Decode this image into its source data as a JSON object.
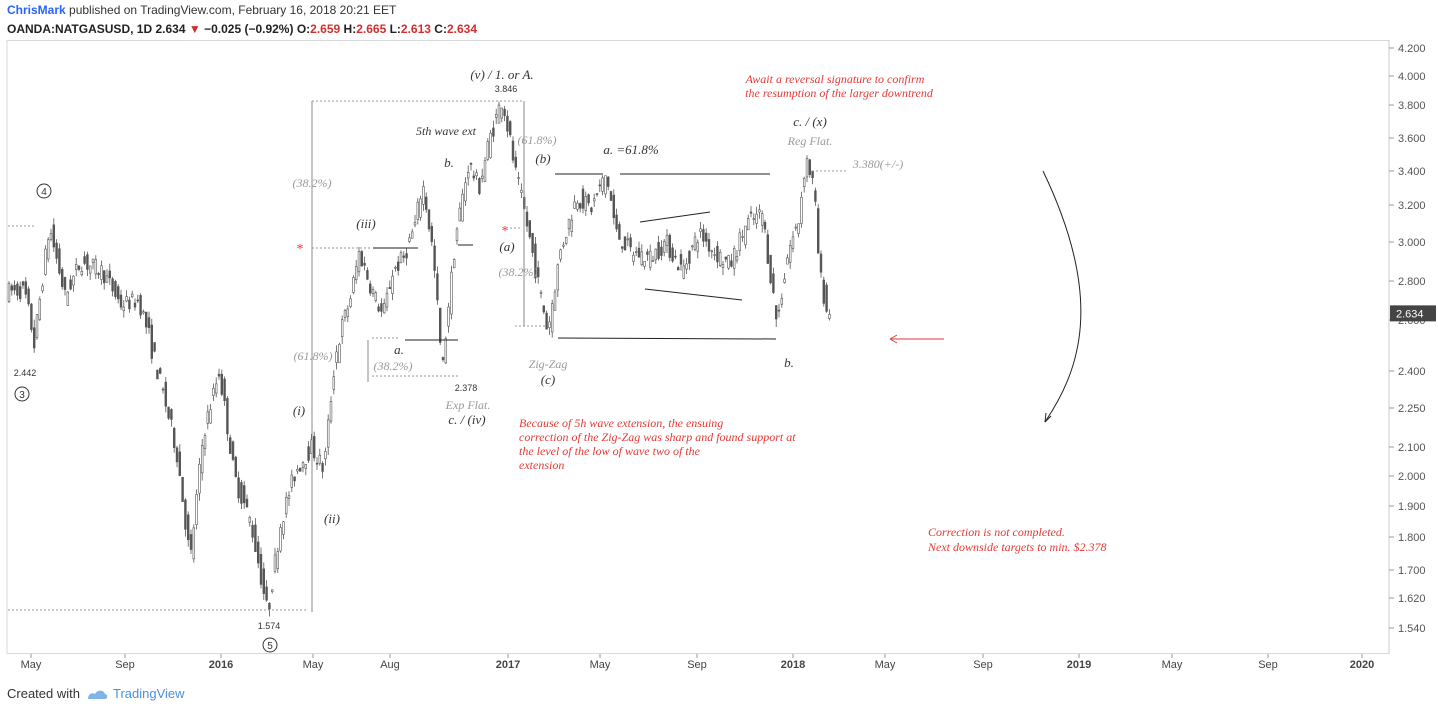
{
  "header": {
    "author": "ChrisMark",
    "published": "published on TradingView.com, February 16, 2018 20:21 EET",
    "symbol": "OANDA:NATGASUSD, 1D",
    "price": "2.634",
    "change": "−0.025 (−0.92%)",
    "o_label": "O:",
    "o_value": "2.659",
    "h_label": "H:",
    "h_value": "2.665",
    "l_label": "L:",
    "l_value": "2.613",
    "c_label": "C:",
    "c_value": "2.634"
  },
  "footer": {
    "created_with": "Created with",
    "brand": "TradingView"
  },
  "colors": {
    "annotation_red": "#e53935",
    "gray_text": "#999999",
    "dark_text": "#333333",
    "candle": "#555555",
    "price_tag": "#444444"
  },
  "chart_data": {
    "type": "candlestick",
    "price_label": "2.634",
    "y_ticks": [
      "4.200",
      "4.000",
      "3.800",
      "3.600",
      "3.400",
      "3.200",
      "3.000",
      "2.800",
      "2.600",
      "2.400",
      "2.250",
      "2.100",
      "2.000",
      "1.900",
      "1.800",
      "1.700",
      "1.620",
      "1.540"
    ],
    "x_ticks": [
      "May",
      "Sep",
      "2016",
      "May",
      "Aug",
      "2017",
      "May",
      "Sep",
      "2018",
      "May",
      "Sep",
      "2019",
      "May",
      "Sep",
      "2020"
    ],
    "path": [
      [
        "2015-04-27",
        2.75
      ],
      [
        "2015-05-10",
        2.5
      ],
      [
        "2015-05-29",
        3.08
      ],
      [
        "2015-06-18",
        2.72
      ],
      [
        "2015-07-08",
        2.9
      ],
      [
        "2015-08-05",
        2.85
      ],
      [
        "2015-08-28",
        2.68
      ],
      [
        "2015-09-20",
        2.7
      ],
      [
        "2015-10-18",
        2.35
      ],
      [
        "2015-11-08",
        2.08
      ],
      [
        "2015-11-25",
        1.72
      ],
      [
        "2015-12-12",
        2.15
      ],
      [
        "2016-01-01",
        2.4
      ],
      [
        "2016-01-20",
        2.0
      ],
      [
        "2016-02-10",
        1.85
      ],
      [
        "2016-03-03",
        1.574
      ],
      [
        "2016-03-20",
        1.85
      ],
      [
        "2016-04-08",
        2.02
      ],
      [
        "2016-04-28",
        2.1
      ],
      [
        "2016-05-14",
        2.02
      ],
      [
        "2016-05-28",
        2.45
      ],
      [
        "2016-06-08",
        2.6
      ],
      [
        "2016-06-16",
        2.7
      ],
      [
        "2016-06-28",
        2.95
      ],
      [
        "2016-07-12",
        2.78
      ],
      [
        "2016-07-28",
        2.62
      ],
      [
        "2016-08-10",
        2.85
      ],
      [
        "2016-08-24",
        2.92
      ],
      [
        "2016-09-08",
        3.1
      ],
      [
        "2016-09-17",
        3.33
      ],
      [
        "2016-09-30",
        2.95
      ],
      [
        "2016-10-12",
        2.378
      ],
      [
        "2016-10-30",
        3.05
      ],
      [
        "2016-11-15",
        3.45
      ],
      [
        "2016-11-28",
        3.3
      ],
      [
        "2016-12-12",
        3.6
      ],
      [
        "2016-12-28",
        3.846
      ],
      [
        "2017-01-14",
        3.38
      ],
      [
        "2017-01-28",
        3.1
      ],
      [
        "2017-02-12",
        2.78
      ],
      [
        "2017-02-24",
        2.55
      ],
      [
        "2017-03-12",
        2.95
      ],
      [
        "2017-04-02",
        3.25
      ],
      [
        "2017-04-20",
        3.18
      ],
      [
        "2017-05-10",
        3.38
      ],
      [
        "2017-05-22",
        3.05
      ],
      [
        "2017-06-10",
        2.95
      ],
      [
        "2017-07-05",
        2.92
      ],
      [
        "2017-07-25",
        3.0
      ],
      [
        "2017-08-15",
        2.85
      ],
      [
        "2017-09-05",
        3.05
      ],
      [
        "2017-09-25",
        2.95
      ],
      [
        "2017-10-15",
        2.88
      ],
      [
        "2017-11-05",
        3.1
      ],
      [
        "2017-11-25",
        3.15
      ],
      [
        "2017-12-14",
        2.58
      ],
      [
        "2017-12-28",
        2.95
      ],
      [
        "2018-01-10",
        3.1
      ],
      [
        "2018-01-20",
        3.49
      ],
      [
        "2018-01-30",
        3.3
      ],
      [
        "2018-02-06",
        2.85
      ],
      [
        "2018-02-16",
        2.634
      ]
    ],
    "annotations": {
      "red": [
        "Await a reversal signature to confirm",
        "the resumption of the larger downtrend",
        "Because of 5h wave extension, the ensuing",
        "correction of the Zig-Zag was sharp and found support at",
        "the level of the low of wave two of the",
        "extension",
        "Correction is not completed.",
        "Next downside targets to min. $2.378"
      ],
      "dark": [
        "(v) / 1. or A.",
        "5th wave ext",
        "b.",
        "(iii)",
        "(i)",
        "(ii)",
        "a.",
        "c. / (iv)",
        "(a)",
        "(b)",
        "a. =61.8%",
        "(c)",
        "b.",
        "c. / (x)"
      ],
      "gray": [
        "(38.2%)",
        "(61.8%)",
        "(61.8%)",
        "(38.2%)",
        "(38.2%)",
        "Exp Flat.",
        "Zig-Zag",
        "Reg Flat.",
        "3.380(+/-)"
      ],
      "values": [
        "3.846",
        "2.378",
        "2.442",
        "1.574"
      ],
      "circled": [
        "4",
        "3",
        "5"
      ],
      "marker": "*"
    }
  }
}
